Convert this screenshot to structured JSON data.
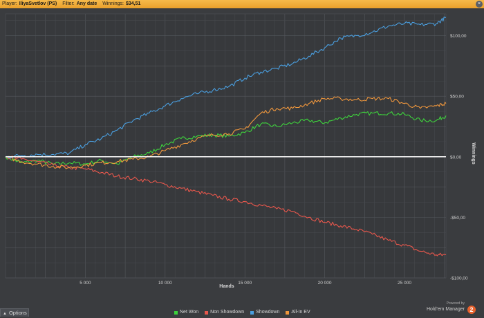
{
  "header": {
    "player_label": "Player:",
    "player_value": "IliyaSvetlov (PS)",
    "filter_label": "Filter:",
    "filter_value": "Any date",
    "winnings_label": "Winnings:",
    "winnings_value": "$34,51",
    "close_glyph": "×",
    "bar_color": "#f0ab36"
  },
  "options_label": "Options",
  "branding": {
    "powered_by": "Powered by",
    "product": "Hold'em Manager",
    "version": "2",
    "logo_color": "#e8612c"
  },
  "chart_data": {
    "type": "line",
    "xlabel": "Hands",
    "ylabel": "Winnings",
    "x_ticks": [
      5000,
      10000,
      15000,
      20000,
      25000
    ],
    "x_tick_labels": [
      "5 000",
      "10 000",
      "15 000",
      "20 000",
      "25 000"
    ],
    "y_ticks": [
      -100,
      -50,
      0,
      50,
      100
    ],
    "y_tick_labels": [
      "-$100,00",
      "-$50,00",
      "$0,00",
      "$50,00",
      "$100,00"
    ],
    "xlim": [
      0,
      27600
    ],
    "ylim": [
      -100,
      118
    ],
    "grid": true,
    "legend_position": "bottom-center",
    "zero_line_color": "#ffffff",
    "series": [
      {
        "name": "Net Won",
        "color": "#3ed33c",
        "x": [
          0,
          1000,
          2000,
          3000,
          4000,
          5000,
          6000,
          7000,
          8000,
          9000,
          10000,
          11000,
          12000,
          13000,
          14000,
          15000,
          16000,
          17000,
          18000,
          19000,
          20000,
          21000,
          22000,
          23000,
          24000,
          25000,
          26000,
          27000,
          27600
        ],
        "y": [
          0,
          -5,
          -3,
          -6,
          -5,
          -6,
          -3,
          -6,
          0,
          3,
          10,
          15,
          17,
          18,
          17,
          20,
          27,
          25,
          28,
          30,
          28,
          32,
          35,
          36,
          36,
          35,
          30,
          30,
          34
        ]
      },
      {
        "name": "Non Showdown",
        "color": "#e8574c",
        "x": [
          0,
          1000,
          2000,
          3000,
          4000,
          5000,
          6000,
          7000,
          8000,
          9000,
          10000,
          11000,
          12000,
          13000,
          14000,
          15000,
          16000,
          17000,
          18000,
          19000,
          20000,
          21000,
          22000,
          23000,
          24000,
          25000,
          26000,
          27000,
          27600
        ],
        "y": [
          0,
          -2,
          -4,
          -7,
          -9,
          -10,
          -13,
          -16,
          -18,
          -20,
          -23,
          -26,
          -29,
          -32,
          -35,
          -37,
          -40,
          -43,
          -45,
          -50,
          -54,
          -57,
          -60,
          -64,
          -69,
          -73,
          -78,
          -81,
          -81
        ]
      },
      {
        "name": "Showdown",
        "color": "#4a9fe0",
        "x": [
          0,
          1000,
          2000,
          3000,
          4000,
          5000,
          6000,
          7000,
          8000,
          9000,
          10000,
          11000,
          12000,
          13000,
          14000,
          15000,
          16000,
          17000,
          18000,
          19000,
          20000,
          21000,
          22000,
          23000,
          24000,
          25000,
          26000,
          27000,
          27600
        ],
        "y": [
          0,
          1,
          2,
          2,
          3,
          10,
          15,
          22,
          30,
          36,
          42,
          48,
          52,
          55,
          58,
          65,
          70,
          73,
          77,
          83,
          90,
          98,
          100,
          103,
          108,
          110,
          109,
          110,
          115
        ]
      },
      {
        "name": "All-In EV",
        "color": "#f0973c",
        "x": [
          0,
          1000,
          2000,
          3000,
          4000,
          5000,
          6000,
          7000,
          8000,
          9000,
          10000,
          11000,
          12000,
          13000,
          14000,
          15000,
          16000,
          17000,
          18000,
          19000,
          20000,
          21000,
          22000,
          23000,
          24000,
          25000,
          26000,
          27000,
          27600
        ],
        "y": [
          0,
          -4,
          -6,
          -8,
          -9,
          -7,
          -5,
          -4,
          -2,
          0,
          5,
          10,
          15,
          18,
          19,
          23,
          36,
          40,
          40,
          44,
          48,
          48,
          47,
          48,
          48,
          44,
          40,
          42,
          44
        ]
      }
    ]
  }
}
